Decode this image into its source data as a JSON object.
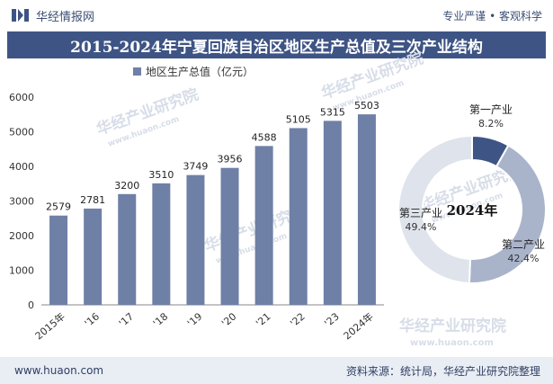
{
  "header": {
    "brand": "华经情报网",
    "tagline": "专业严谨 • 客观科学"
  },
  "title": "2015-2024年宁夏回族自治区地区生产总值及三次产业结构",
  "legend": {
    "label": "地区生产总值（亿元）",
    "color": "#6f80a6"
  },
  "watermarks": [
    "华经产业研究院",
    "www.huaon.com"
  ],
  "chart_data": [
    {
      "type": "bar",
      "categories": [
        "2015年",
        "'16",
        "'17",
        "'18",
        "'19",
        "'20",
        "'21",
        "'22",
        "'23",
        "2024年"
      ],
      "series": [
        {
          "name": "地区生产总值（亿元）",
          "values": [
            2579,
            2781,
            3200,
            3510,
            3749,
            3956,
            4588,
            5105,
            5315,
            5503
          ]
        }
      ],
      "ylim": [
        0,
        6000
      ],
      "yticks": [
        0,
        1000,
        2000,
        3000,
        4000,
        5000,
        6000
      ],
      "grid": false,
      "legend": "top",
      "bar_color": "#6f80a6"
    },
    {
      "type": "pie",
      "donut": true,
      "center_label": "2024年",
      "slices": [
        {
          "label": "第一产业",
          "value": 8.2,
          "display": "8.2%",
          "color": "#3e5485"
        },
        {
          "label": "第二产业",
          "value": 42.4,
          "display": "42.4%",
          "color": "#a9b4cb"
        },
        {
          "label": "第三产业",
          "value": 49.4,
          "display": "49.4%",
          "color": "#dfe3ec"
        }
      ]
    }
  ],
  "footer": {
    "url": "www.huaon.com",
    "source": "资料来源：统计局，华经产业研究院整理"
  }
}
